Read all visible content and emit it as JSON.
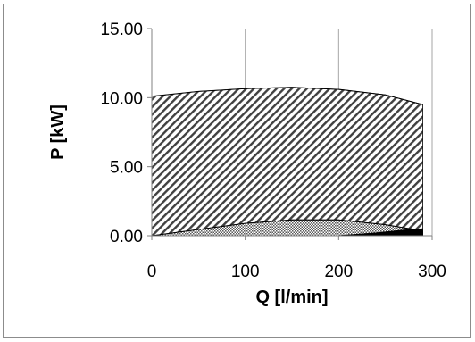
{
  "chart_data": {
    "type": "area",
    "title": "",
    "xlabel": "Q [l/min]",
    "ylabel": "P [kW]",
    "xlim": [
      0,
      300
    ],
    "ylim": [
      0,
      15
    ],
    "xticks": [
      "0",
      "100",
      "200",
      "300"
    ],
    "yticks": [
      "0.00",
      "5.00",
      "10.00",
      "15.00"
    ],
    "grid": "vertical",
    "legend": "none",
    "series": [
      {
        "fill": "diagonal-hatch",
        "x": [
          0,
          50,
          100,
          150,
          200,
          250,
          290
        ],
        "values": [
          10.1,
          10.45,
          10.65,
          10.75,
          10.6,
          10.2,
          9.5
        ]
      },
      {
        "fill": "crosshatch",
        "x": [
          0,
          50,
          100,
          150,
          200,
          250,
          290
        ],
        "values": [
          0.0,
          0.45,
          0.9,
          1.15,
          1.15,
          0.8,
          0.35
        ]
      },
      {
        "fill": "solid",
        "x": [
          200,
          240,
          270,
          290
        ],
        "values": [
          0.0,
          0.2,
          0.4,
          0.5
        ]
      }
    ],
    "colors": {
      "axis": "#808080",
      "grid": "#a6a6a6",
      "hatch": "#404040",
      "solid": "#000000"
    }
  }
}
